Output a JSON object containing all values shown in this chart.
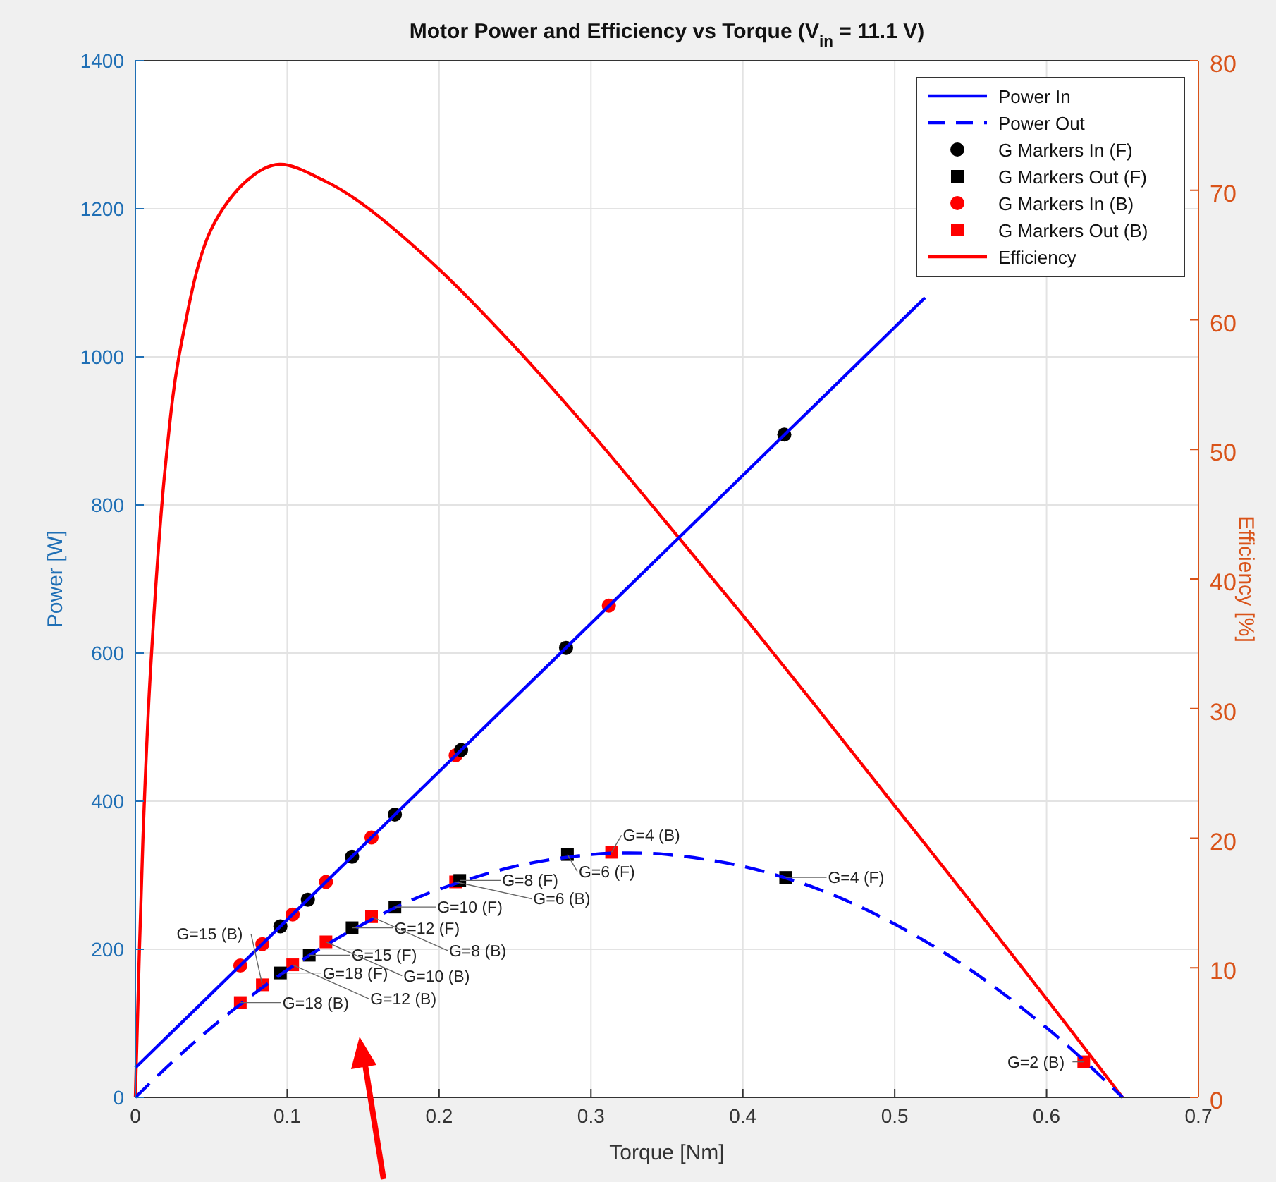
{
  "chart_data": {
    "type": "line",
    "title": "Motor Power and Efficiency vs Torque (V$_{in}$ = 11.1 V)",
    "xlabel": "Torque [Nm]",
    "ylabel": "Power [W]",
    "y2label": "Efficiency [%]",
    "xlim": [
      0,
      0.7
    ],
    "xticks": [
      0,
      0.1,
      0.2,
      0.3,
      0.4,
      0.5,
      0.6,
      0.7
    ],
    "ylim": [
      0,
      1400
    ],
    "yticks": [
      0,
      200,
      400,
      600,
      800,
      1000,
      1200,
      1400
    ],
    "y2lim": [
      0,
      80
    ],
    "y2ticks": [
      0,
      10,
      20,
      30,
      40,
      50,
      60,
      70,
      80
    ],
    "grid": true,
    "legend": "top right",
    "annotations": [
      {
        "text": "G=18 (F)",
        "x": 0.0955,
        "y": 168
      },
      {
        "text": "G=15 (F)",
        "x": 0.1145,
        "y": 192
      },
      {
        "text": "G=12 (F)",
        "x": 0.1427,
        "y": 229
      },
      {
        "text": "G=10 (F)",
        "x": 0.1709,
        "y": 257
      },
      {
        "text": "G=8 (F)",
        "x": 0.2136,
        "y": 293
      },
      {
        "text": "G=6 (F)",
        "x": 0.2845,
        "y": 328
      },
      {
        "text": "G=4 (F)",
        "x": 0.4282,
        "y": 297
      },
      {
        "text": "G=18 (B)",
        "x": 0.0691,
        "y": 128
      },
      {
        "text": "G=15 (B)",
        "x": 0.0836,
        "y": 152
      },
      {
        "text": "G=12 (B)",
        "x": 0.1036,
        "y": 179
      },
      {
        "text": "G=10 (B)",
        "x": 0.1255,
        "y": 210
      },
      {
        "text": "G=8 (B)",
        "x": 0.1555,
        "y": 244
      },
      {
        "text": "G=6 (B)",
        "x": 0.2109,
        "y": 291
      },
      {
        "text": "G=4 (B)",
        "x": 0.3136,
        "y": 331
      },
      {
        "text": "G=2 (B)",
        "x": 0.6245,
        "y": 48
      }
    ],
    "series": [
      {
        "name": "Power In",
        "color": "#0000ff",
        "line_style": "solid",
        "marker": "none",
        "x": [
          0,
          0.52
        ],
        "values": [
          40,
          1080
        ]
      },
      {
        "name": "Power Out",
        "color": "#0000ff",
        "line_style": "dashed",
        "marker": "none",
        "x": [
          0,
          0.025,
          0.05,
          0.075,
          0.1,
          0.125,
          0.15,
          0.175,
          0.2,
          0.25,
          0.3,
          0.325,
          0.35,
          0.4,
          0.45,
          0.5,
          0.55,
          0.6,
          0.625,
          0.65
        ],
        "values": [
          0,
          49,
          94,
          135,
          172,
          205,
          234,
          260,
          281,
          312,
          328,
          330,
          328,
          312,
          281,
          234,
          172,
          94,
          49,
          0
        ]
      },
      {
        "name": "G Markers In (F)",
        "type": "scatter",
        "color": "#000000",
        "marker": "circle",
        "x": [
          0.0955,
          0.1136,
          0.1427,
          0.1709,
          0.2145,
          0.2836,
          0.4273
        ],
        "values": [
          231,
          267,
          325,
          382,
          469,
          607,
          895
        ]
      },
      {
        "name": "G Markers Out (F)",
        "type": "scatter",
        "color": "#000000",
        "marker": "square",
        "x": [
          0.0955,
          0.1145,
          0.1427,
          0.1709,
          0.2136,
          0.2845,
          0.4282
        ],
        "values": [
          168,
          192,
          229,
          257,
          293,
          328,
          297
        ]
      },
      {
        "name": "G Markers In (B)",
        "type": "scatter",
        "color": "#ff0000",
        "marker": "circle",
        "x": [
          0.0691,
          0.0836,
          0.1036,
          0.1255,
          0.1555,
          0.2109,
          0.3118
        ],
        "values": [
          178,
          207,
          247,
          291,
          351,
          462,
          664
        ]
      },
      {
        "name": "G Markers Out (B)",
        "type": "scatter",
        "color": "#ff0000",
        "marker": "square",
        "x": [
          0.0691,
          0.0836,
          0.1036,
          0.1255,
          0.1555,
          0.2109,
          0.3136,
          0.6245
        ],
        "values": [
          128,
          152,
          179,
          210,
          244,
          291,
          331,
          48
        ]
      },
      {
        "name": "Efficiency",
        "axis": "y2",
        "color": "#ff0000",
        "line_style": "solid",
        "marker": "none",
        "x": [
          0,
          0.005,
          0.01,
          0.02,
          0.03,
          0.05,
          0.075,
          0.095,
          0.125,
          0.15,
          0.2,
          0.25,
          0.3,
          0.35,
          0.4,
          0.45,
          0.5,
          0.55,
          0.6,
          0.65
        ],
        "values": [
          0,
          20,
          33,
          49,
          58,
          67,
          70.9,
          72,
          70.7,
          68.9,
          63.9,
          57.9,
          51.3,
          44.3,
          37.2,
          29.9,
          22.5,
          15.1,
          7.6,
          0
        ]
      }
    ]
  }
}
